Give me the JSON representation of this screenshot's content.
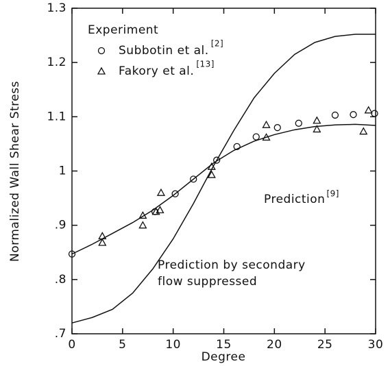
{
  "chart_data": {
    "type": "scatter",
    "x_label": "Degree",
    "y_label": "Normalized Wall Shear Stress",
    "xlim": [
      0,
      30
    ],
    "ylim": [
      0.7,
      1.3
    ],
    "xticks": [
      0,
      5,
      10,
      15,
      20,
      25,
      30
    ],
    "yticks": [
      {
        "value": 0.7,
        "label": ".7"
      },
      {
        "value": 0.8,
        "label": ".8"
      },
      {
        "value": 0.9,
        "label": ".9"
      },
      1,
      1.1,
      1.2,
      1.3
    ],
    "legend_title": "Experiment",
    "color": "#111111",
    "series": [
      {
        "name": "Subbotin et al.",
        "ref": "[2]",
        "marker": "circle",
        "x": [
          0,
          8.2,
          10.2,
          12,
          14.3,
          16.3,
          18.2,
          20.3,
          22.4,
          26,
          27.8,
          29.9
        ],
        "values": [
          0.847,
          0.925,
          0.958,
          0.985,
          1.02,
          1.045,
          1.063,
          1.08,
          1.088,
          1.103,
          1.104,
          1.106
        ]
      },
      {
        "name": "Fakory et al.",
        "ref": "[13]",
        "marker": "triangle",
        "x": [
          3,
          3,
          7,
          7,
          8.3,
          8.7,
          8.8,
          13.8,
          13.8,
          19.2,
          19.2,
          24.2,
          24.2,
          28.8,
          29.3
        ],
        "values": [
          0.88,
          0.868,
          0.918,
          0.9,
          0.925,
          0.928,
          0.96,
          1.008,
          0.993,
          1.085,
          1.062,
          1.093,
          1.077,
          1.073,
          1.112
        ]
      },
      {
        "label_lines": [
          "Prediction"
        ],
        "ref": "[9]",
        "marker": "line",
        "x": [
          0,
          2,
          4,
          6,
          8,
          10,
          12,
          14,
          16,
          18,
          20,
          22,
          24,
          26,
          28,
          30
        ],
        "values": [
          0.847,
          0.865,
          0.885,
          0.905,
          0.928,
          0.955,
          0.985,
          1.015,
          1.038,
          1.055,
          1.067,
          1.076,
          1.082,
          1.085,
          1.086,
          1.084
        ]
      },
      {
        "label_lines": [
          "Prediction by secondary",
          "flow suppressed"
        ],
        "marker": "line",
        "x": [
          0,
          2,
          4,
          6,
          8,
          10,
          12,
          14,
          16,
          18,
          20,
          22,
          24,
          26,
          28,
          30
        ],
        "values": [
          0.72,
          0.73,
          0.745,
          0.775,
          0.82,
          0.875,
          0.94,
          1.01,
          1.075,
          1.135,
          1.18,
          1.215,
          1.237,
          1.248,
          1.252,
          1.252
        ]
      }
    ]
  }
}
